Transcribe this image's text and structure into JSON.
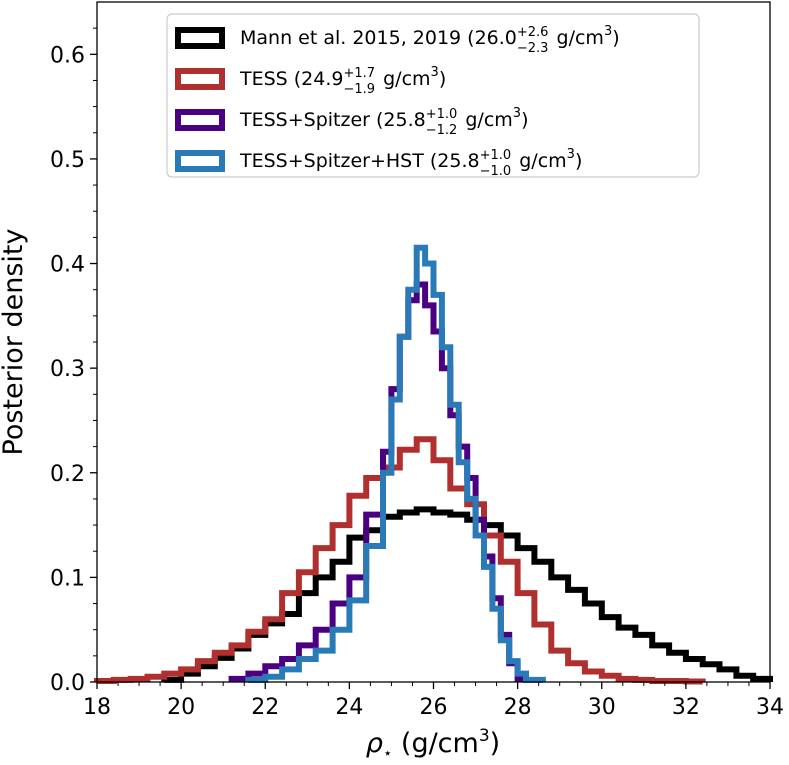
{
  "chart_data": {
    "type": "histogram-step",
    "xlabel_symbol": "ρ",
    "xlabel_subscript": "⋆",
    "xlabel_unit": " (g/cm",
    "xlabel_unit_exp": "3",
    "xlabel_close": ")",
    "ylabel": "Posterior density",
    "xlim": [
      18,
      34
    ],
    "ylim": [
      0,
      0.65
    ],
    "xticks": [
      "18",
      "20",
      "22",
      "24",
      "26",
      "28",
      "30",
      "32",
      "34"
    ],
    "xtick_values": [
      18,
      20,
      22,
      24,
      26,
      28,
      30,
      32,
      34
    ],
    "yticks": [
      "0.0",
      "0.1",
      "0.2",
      "0.3",
      "0.4",
      "0.5",
      "0.6"
    ],
    "ytick_values": [
      0,
      0.1,
      0.2,
      0.3,
      0.4,
      0.5,
      0.6
    ],
    "legend_position": "top-center",
    "series": [
      {
        "name_main": "Mann et al. 2015, 2019 (26.0",
        "name_sup": "+2.6",
        "name_sub": "−2.3",
        "name_unit": " g/cm",
        "name_exp": "3",
        "name_close": ")",
        "color": "#000000",
        "edges": [
          19.6,
          20.0,
          20.4,
          20.8,
          21.2,
          21.6,
          22.0,
          22.4,
          22.8,
          23.2,
          23.6,
          24.0,
          24.4,
          24.8,
          25.2,
          25.6,
          26.0,
          26.4,
          26.8,
          27.2,
          27.6,
          28.0,
          28.4,
          28.8,
          29.2,
          29.6,
          30.0,
          30.4,
          30.8,
          31.2,
          31.6,
          32.0,
          32.4,
          32.8,
          33.2,
          33.6,
          34.0
        ],
        "values": [
          0.002,
          0.008,
          0.015,
          0.023,
          0.032,
          0.045,
          0.056,
          0.065,
          0.085,
          0.1,
          0.115,
          0.138,
          0.145,
          0.158,
          0.162,
          0.165,
          0.162,
          0.16,
          0.155,
          0.15,
          0.14,
          0.128,
          0.115,
          0.1,
          0.088,
          0.075,
          0.062,
          0.052,
          0.045,
          0.035,
          0.028,
          0.022,
          0.017,
          0.012,
          0.006,
          0.003
        ]
      },
      {
        "name_main": "TESS (24.9",
        "name_sup": "+1.7",
        "name_sub": "−1.9",
        "name_unit": " g/cm",
        "name_exp": "3",
        "name_close": ")",
        "color": "#b03030",
        "edges": [
          18.0,
          18.4,
          18.8,
          19.2,
          19.6,
          20.0,
          20.4,
          20.8,
          21.2,
          21.6,
          22.0,
          22.4,
          22.8,
          23.2,
          23.6,
          24.0,
          24.4,
          24.8,
          25.2,
          25.6,
          26.0,
          26.4,
          26.8,
          27.2,
          27.6,
          28.0,
          28.4,
          28.8,
          29.2,
          29.6,
          30.0,
          30.4,
          30.8,
          31.2,
          31.6,
          32.0,
          32.4
        ],
        "values": [
          0.001,
          0.002,
          0.003,
          0.005,
          0.008,
          0.012,
          0.02,
          0.028,
          0.035,
          0.048,
          0.06,
          0.085,
          0.105,
          0.128,
          0.15,
          0.178,
          0.195,
          0.205,
          0.222,
          0.232,
          0.212,
          0.185,
          0.17,
          0.14,
          0.115,
          0.085,
          0.055,
          0.03,
          0.018,
          0.01,
          0.006,
          0.003,
          0.002,
          0.001,
          0.001,
          0.0005
        ]
      },
      {
        "name_main": "TESS+Spitzer (25.8",
        "name_sup": "+1.0",
        "name_sub": "−1.2",
        "name_unit": " g/cm",
        "name_exp": "3",
        "name_close": ")",
        "color": "#4b0082",
        "edges": [
          21.2,
          21.6,
          22.0,
          22.4,
          22.8,
          23.2,
          23.6,
          24.0,
          24.4,
          24.8,
          25.0,
          25.2,
          25.4,
          25.6,
          25.8,
          26.0,
          26.2,
          26.4,
          26.6,
          26.8,
          27.0,
          27.2,
          27.4,
          27.6,
          27.8,
          28.0,
          28.2
        ],
        "values": [
          0.003,
          0.008,
          0.015,
          0.022,
          0.035,
          0.05,
          0.075,
          0.1,
          0.16,
          0.22,
          0.28,
          0.33,
          0.365,
          0.38,
          0.36,
          0.335,
          0.3,
          0.255,
          0.225,
          0.195,
          0.155,
          0.12,
          0.08,
          0.045,
          0.018,
          0.003
        ]
      },
      {
        "name_main": "TESS+Spitzer+HST (25.8",
        "name_sup": "+1.0",
        "name_sub": "−1.0",
        "name_unit": " g/cm",
        "name_exp": "3",
        "name_close": ")",
        "color": "#2a7ab8",
        "edges": [
          21.6,
          22.0,
          22.4,
          22.8,
          23.2,
          23.6,
          24.0,
          24.4,
          24.8,
          25.0,
          25.2,
          25.4,
          25.6,
          25.8,
          26.0,
          26.2,
          26.4,
          26.6,
          26.8,
          27.0,
          27.2,
          27.4,
          27.6,
          27.8,
          28.0,
          28.2,
          28.6
        ],
        "values": [
          0.002,
          0.005,
          0.012,
          0.022,
          0.03,
          0.05,
          0.078,
          0.13,
          0.2,
          0.27,
          0.33,
          0.375,
          0.415,
          0.4,
          0.37,
          0.32,
          0.265,
          0.21,
          0.175,
          0.14,
          0.11,
          0.07,
          0.04,
          0.02,
          0.008,
          0.002
        ]
      }
    ]
  }
}
